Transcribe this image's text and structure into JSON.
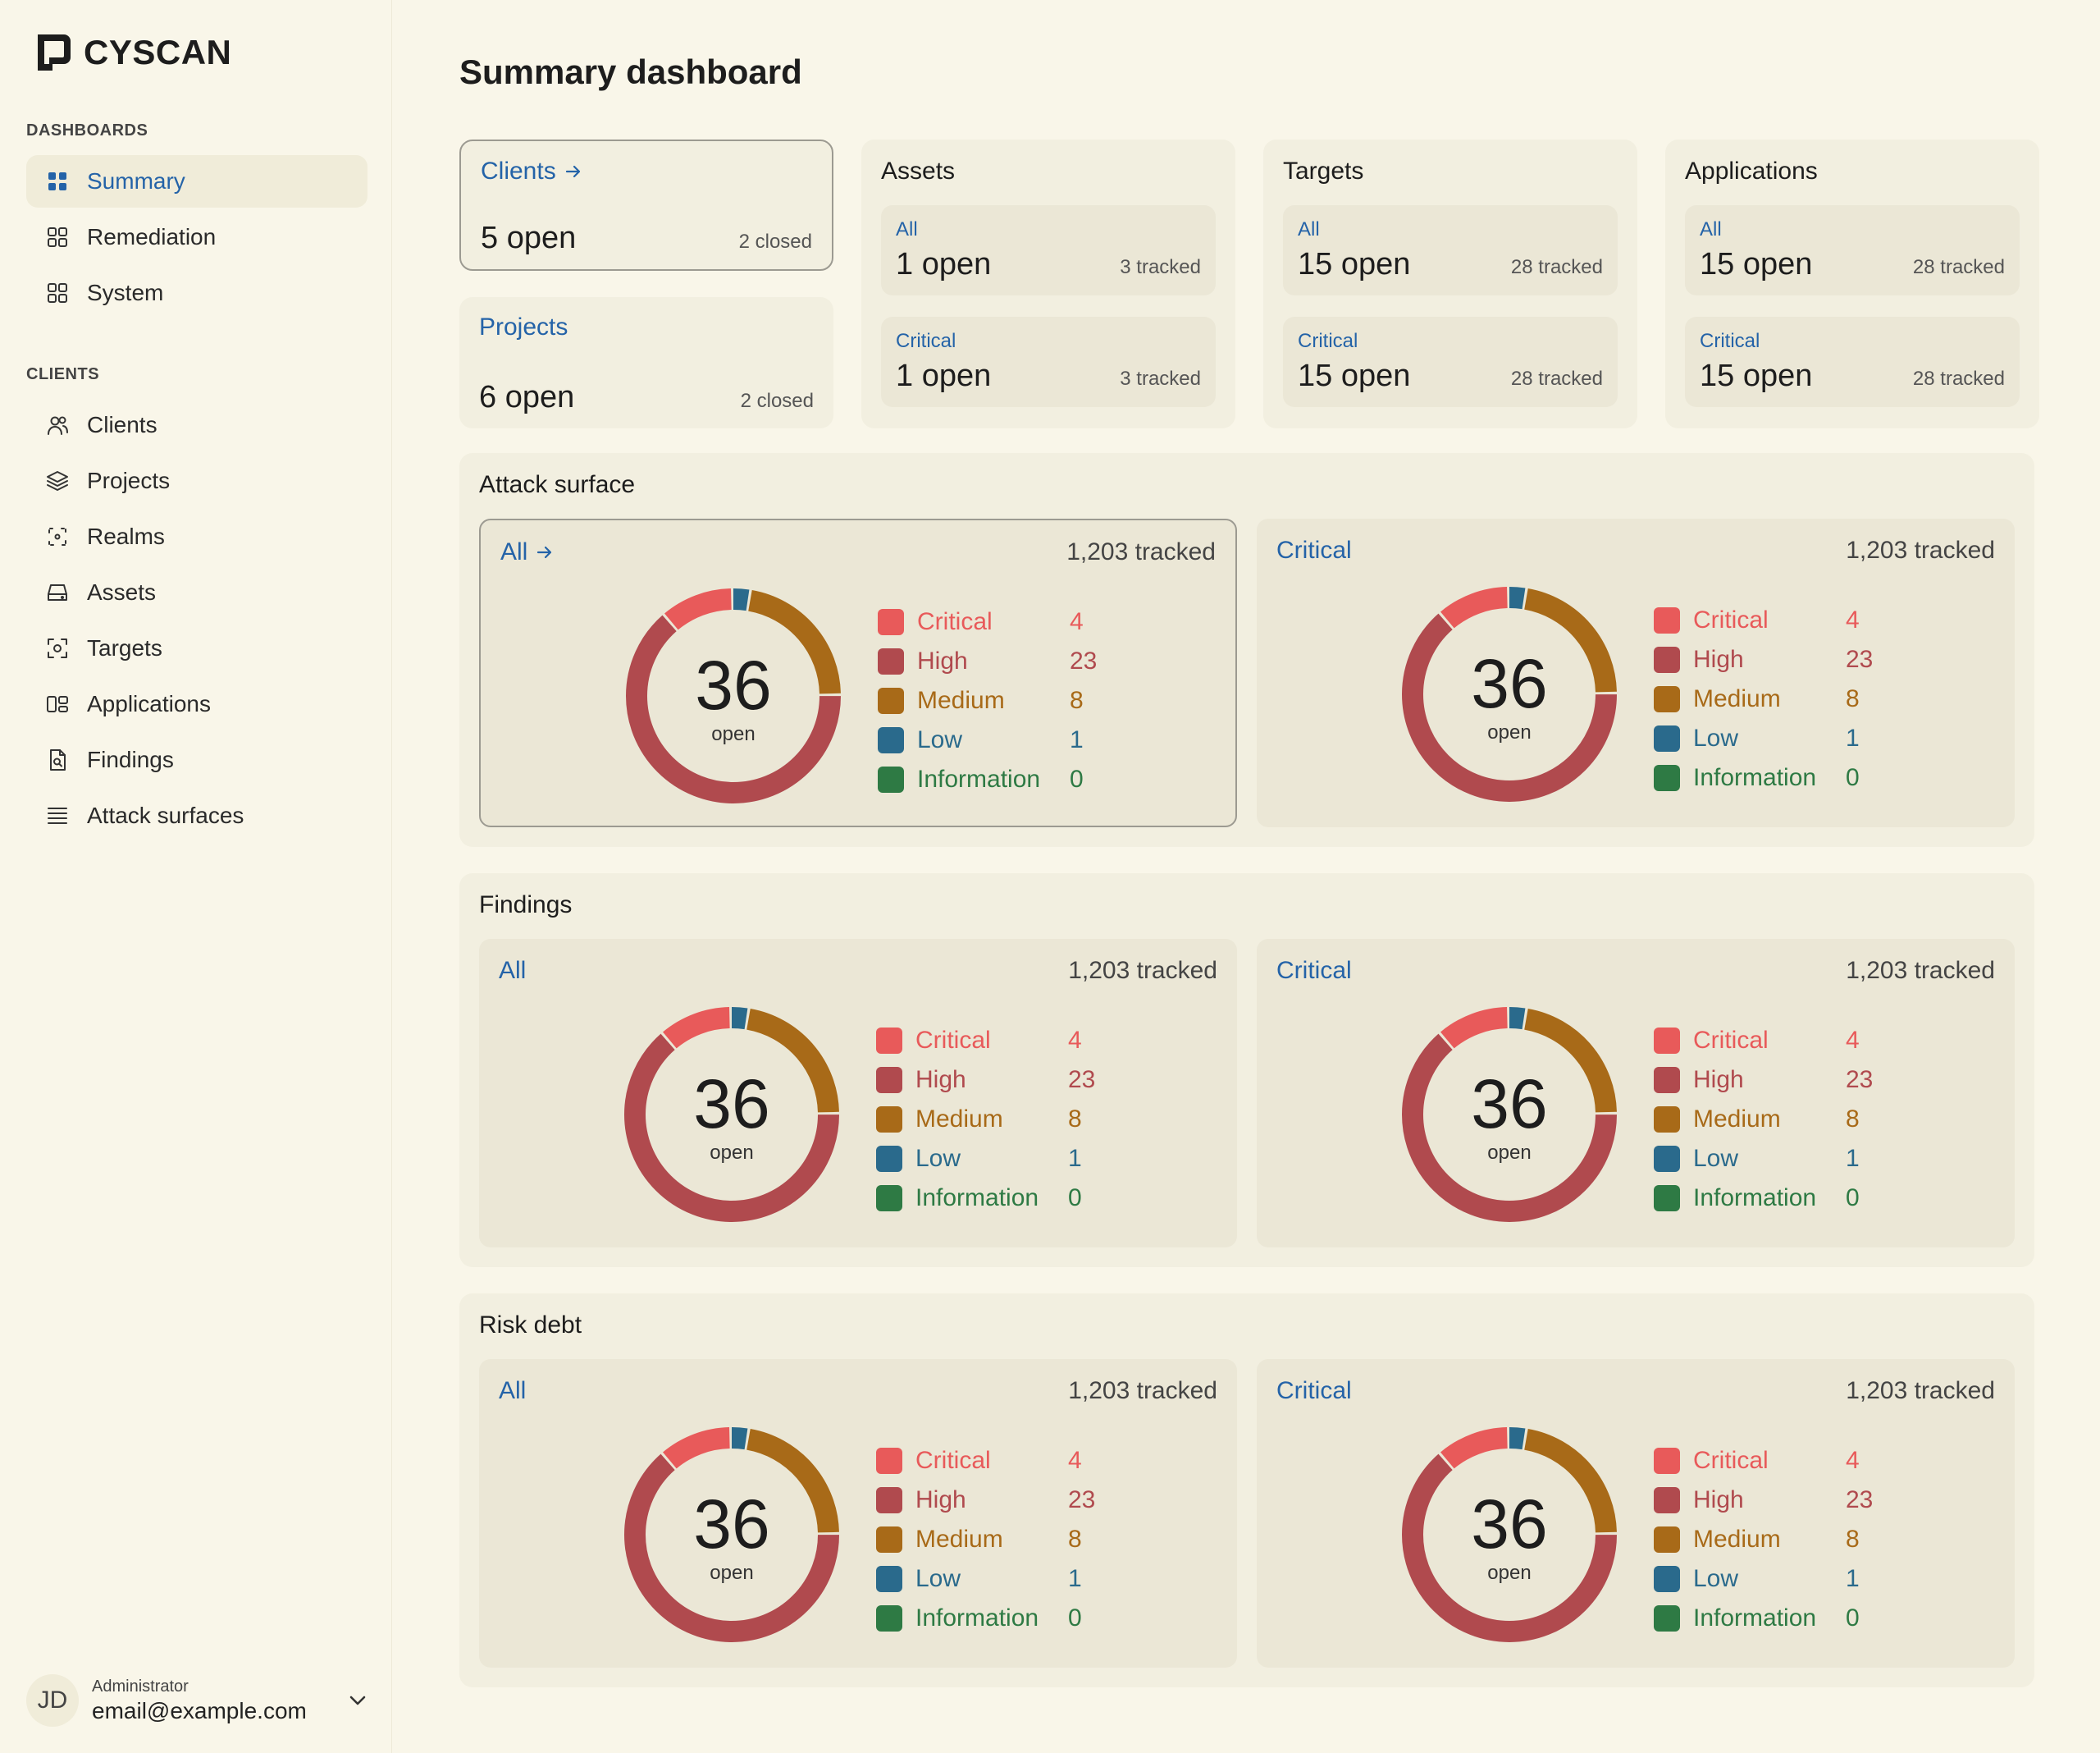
{
  "brand": {
    "name": "CYSCAN"
  },
  "sidebar": {
    "dashboards_label": "DASHBOARDS",
    "dashboards": [
      {
        "label": "Summary",
        "icon": "grid-icon",
        "active": true
      },
      {
        "label": "Remediation",
        "icon": "grid-icon",
        "active": false
      },
      {
        "label": "System",
        "icon": "grid-icon",
        "active": false
      }
    ],
    "clients_label": "CLIENTS",
    "clients": [
      {
        "label": "Clients",
        "icon": "users-icon"
      },
      {
        "label": "Projects",
        "icon": "layers-icon"
      },
      {
        "label": "Realms",
        "icon": "realm-icon"
      },
      {
        "label": "Assets",
        "icon": "drive-icon"
      },
      {
        "label": "Targets",
        "icon": "target-icon"
      },
      {
        "label": "Applications",
        "icon": "applications-icon"
      },
      {
        "label": "Findings",
        "icon": "file-search-icon"
      },
      {
        "label": "Attack surfaces",
        "icon": "list-icon"
      }
    ],
    "user": {
      "initials": "JD",
      "role": "Administrator",
      "email": "email@example.com"
    }
  },
  "page": {
    "title": "Summary dashboard"
  },
  "summary": {
    "clients": {
      "label": "Clients",
      "open": "5 open",
      "closed": "2 closed"
    },
    "projects": {
      "label": "Projects",
      "open": "6 open",
      "closed": "2 closed"
    },
    "groups": [
      {
        "title": "Assets",
        "all": {
          "label": "All",
          "open": "1 open",
          "tracked": "3 tracked"
        },
        "critical": {
          "label": "Critical",
          "open": "1 open",
          "tracked": "3 tracked"
        }
      },
      {
        "title": "Targets",
        "all": {
          "label": "All",
          "open": "15 open",
          "tracked": "28 tracked"
        },
        "critical": {
          "label": "Critical",
          "open": "15 open",
          "tracked": "28 tracked"
        }
      },
      {
        "title": "Applications",
        "all": {
          "label": "All",
          "open": "15 open",
          "tracked": "28 tracked"
        },
        "critical": {
          "label": "Critical",
          "open": "15 open",
          "tracked": "28 tracked"
        }
      }
    ]
  },
  "colors": {
    "critical": "#e85a5a",
    "high": "#b04a4e",
    "medium": "#a86a18",
    "low": "#2a6a8c",
    "information": "#2e7a44"
  },
  "panels": [
    {
      "title": "Attack surface"
    },
    {
      "title": "Findings"
    },
    {
      "title": "Risk debt"
    }
  ],
  "chart_data": [
    {
      "type": "pie",
      "panel": "Attack surface",
      "label": "All",
      "tracked": "1,203 tracked",
      "total": "36",
      "center_label": "open",
      "categories": [
        "Critical",
        "High",
        "Medium",
        "Low",
        "Information"
      ],
      "values": [
        4,
        23,
        8,
        1,
        0
      ]
    },
    {
      "type": "pie",
      "panel": "Attack surface",
      "label": "Critical",
      "tracked": "1,203 tracked",
      "total": "36",
      "center_label": "open",
      "categories": [
        "Critical",
        "High",
        "Medium",
        "Low",
        "Information"
      ],
      "values": [
        4,
        23,
        8,
        1,
        0
      ]
    },
    {
      "type": "pie",
      "panel": "Findings",
      "label": "All",
      "tracked": "1,203 tracked",
      "total": "36",
      "center_label": "open",
      "categories": [
        "Critical",
        "High",
        "Medium",
        "Low",
        "Information"
      ],
      "values": [
        4,
        23,
        8,
        1,
        0
      ]
    },
    {
      "type": "pie",
      "panel": "Findings",
      "label": "Critical",
      "tracked": "1,203 tracked",
      "total": "36",
      "center_label": "open",
      "categories": [
        "Critical",
        "High",
        "Medium",
        "Low",
        "Information"
      ],
      "values": [
        4,
        23,
        8,
        1,
        0
      ]
    },
    {
      "type": "pie",
      "panel": "Risk debt",
      "label": "All",
      "tracked": "1,203 tracked",
      "total": "36",
      "center_label": "open",
      "categories": [
        "Critical",
        "High",
        "Medium",
        "Low",
        "Information"
      ],
      "values": [
        4,
        23,
        8,
        1,
        0
      ]
    },
    {
      "type": "pie",
      "panel": "Risk debt",
      "label": "Critical",
      "tracked": "1,203 tracked",
      "total": "36",
      "center_label": "open",
      "categories": [
        "Critical",
        "High",
        "Medium",
        "Low",
        "Information"
      ],
      "values": [
        4,
        23,
        8,
        1,
        0
      ]
    }
  ]
}
